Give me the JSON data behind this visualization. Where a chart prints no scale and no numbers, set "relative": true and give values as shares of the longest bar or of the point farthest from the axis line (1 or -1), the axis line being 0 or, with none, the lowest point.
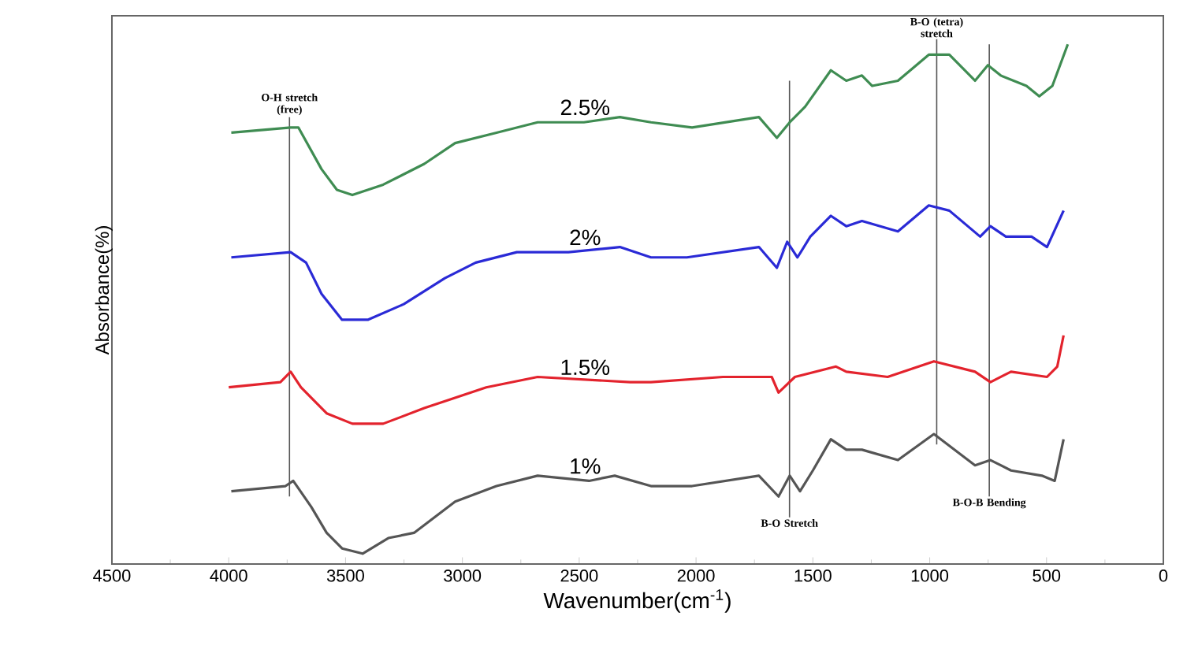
{
  "chart_data": {
    "type": "line",
    "relative": true,
    "xlabel": "Wavenumber(cm$^{-1}$)",
    "ylabel": "Absorbance(%)",
    "xlim": [
      4500,
      0
    ],
    "xticks": [
      4500,
      4000,
      3500,
      3000,
      2500,
      2000,
      1500,
      1000,
      500,
      0
    ],
    "legend": false,
    "marker": "none",
    "line_style": "solid",
    "grid": false,
    "series": [
      {
        "name": "2.5%",
        "color": "#3f8c52",
        "x": [
          3989,
          3735,
          3702,
          3603,
          3537,
          3471,
          3339,
          3163,
          3031,
          2854,
          2678,
          2480,
          2326,
          2193,
          2017,
          1731,
          1654,
          1599,
          1533,
          1423,
          1357,
          1290,
          1246,
          1136,
          1004,
          916,
          806,
          751,
          696,
          586,
          531,
          475,
          409
        ],
        "values": [
          0.83,
          0.84,
          0.84,
          0.76,
          0.72,
          0.71,
          0.73,
          0.77,
          0.81,
          0.83,
          0.85,
          0.85,
          0.86,
          0.85,
          0.84,
          0.86,
          0.82,
          0.85,
          0.88,
          0.95,
          0.93,
          0.94,
          0.92,
          0.93,
          0.98,
          0.98,
          0.93,
          0.96,
          0.94,
          0.92,
          0.9,
          0.92,
          1.0
        ]
      },
      {
        "name": "2%",
        "color": "#2a2ad6",
        "x": [
          3989,
          3735,
          3669,
          3603,
          3515,
          3405,
          3251,
          3075,
          2943,
          2767,
          2546,
          2326,
          2193,
          2039,
          1731,
          1654,
          1610,
          1566,
          1511,
          1423,
          1357,
          1290,
          1136,
          1004,
          916,
          784,
          740,
          674,
          564,
          498,
          427
        ],
        "values": [
          0.59,
          0.6,
          0.58,
          0.52,
          0.47,
          0.47,
          0.5,
          0.55,
          0.58,
          0.6,
          0.6,
          0.61,
          0.59,
          0.59,
          0.61,
          0.57,
          0.62,
          0.59,
          0.63,
          0.67,
          0.65,
          0.66,
          0.64,
          0.69,
          0.68,
          0.63,
          0.65,
          0.63,
          0.63,
          0.61,
          0.68
        ]
      },
      {
        "name": "1.5%",
        "color": "#e3232d",
        "x": [
          4000,
          3779,
          3735,
          3691,
          3581,
          3471,
          3339,
          3163,
          2898,
          2678,
          2282,
          2193,
          1885,
          1676,
          1647,
          1577,
          1401,
          1357,
          1180,
          982,
          806,
          740,
          652,
          498,
          454,
          427
        ],
        "values": [
          0.34,
          0.35,
          0.37,
          0.34,
          0.29,
          0.27,
          0.27,
          0.3,
          0.34,
          0.36,
          0.35,
          0.35,
          0.36,
          0.36,
          0.33,
          0.36,
          0.38,
          0.37,
          0.36,
          0.39,
          0.37,
          0.35,
          0.37,
          0.36,
          0.38,
          0.44
        ]
      },
      {
        "name": "1%",
        "color": "#555555",
        "x": [
          3989,
          3757,
          3724,
          3647,
          3581,
          3515,
          3427,
          3317,
          3207,
          3031,
          2854,
          2678,
          2458,
          2348,
          2193,
          2017,
          1731,
          1647,
          1599,
          1555,
          1500,
          1423,
          1357,
          1290,
          1136,
          982,
          806,
          740,
          652,
          520,
          465,
          427
        ],
        "values": [
          0.14,
          0.15,
          0.16,
          0.11,
          0.06,
          0.03,
          0.02,
          0.05,
          0.06,
          0.12,
          0.15,
          0.17,
          0.16,
          0.17,
          0.15,
          0.15,
          0.17,
          0.13,
          0.17,
          0.14,
          0.18,
          0.24,
          0.22,
          0.22,
          0.2,
          0.25,
          0.19,
          0.2,
          0.18,
          0.17,
          0.16,
          0.24
        ]
      }
    ],
    "ref_lines": [
      {
        "axis": "x",
        "value": 3740,
        "label": "O-H stretch (free)",
        "color": "#555555"
      },
      {
        "axis": "x",
        "value": 1600,
        "label": "B-O Stretch",
        "color": "#555555"
      },
      {
        "axis": "x",
        "value": 970,
        "label": "B-O (tetra) stretch",
        "color": "#555555"
      },
      {
        "axis": "x",
        "value": 745,
        "label": "B-O-B Bending",
        "color": "#555555"
      }
    ]
  }
}
